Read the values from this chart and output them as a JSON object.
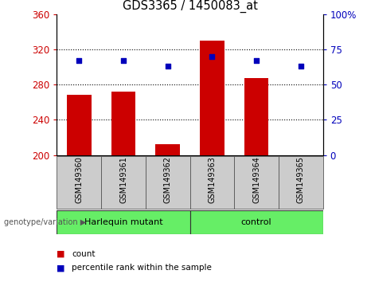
{
  "title": "GDS3365 / 1450083_at",
  "samples": [
    "GSM149360",
    "GSM149361",
    "GSM149362",
    "GSM149363",
    "GSM149364",
    "GSM149365"
  ],
  "count_values": [
    268,
    272,
    212,
    330,
    287,
    200
  ],
  "percentile_values": [
    67,
    67,
    63,
    70,
    67,
    63
  ],
  "left_ylim": [
    200,
    360
  ],
  "left_yticks": [
    200,
    240,
    280,
    320,
    360
  ],
  "right_ylim": [
    0,
    100
  ],
  "right_yticks": [
    0,
    25,
    50,
    75,
    100
  ],
  "right_yticklabels": [
    "0",
    "25",
    "50",
    "75",
    "100%"
  ],
  "bar_color": "#cc0000",
  "dot_color": "#0000bb",
  "grid_ticks": [
    240,
    280,
    320
  ],
  "group1_label": "Harlequin mutant",
  "group2_label": "control",
  "group1_indices": [
    0,
    1,
    2
  ],
  "group2_indices": [
    3,
    4,
    5
  ],
  "genotype_label": "genotype/variation",
  "legend_count": "count",
  "legend_percentile": "percentile rank within the sample",
  "bar_bottom": 200,
  "group_bar_color": "#66ee66",
  "tick_label_color_left": "#cc0000",
  "tick_label_color_right": "#0000bb",
  "sample_box_color": "#cccccc",
  "fig_bg": "white"
}
